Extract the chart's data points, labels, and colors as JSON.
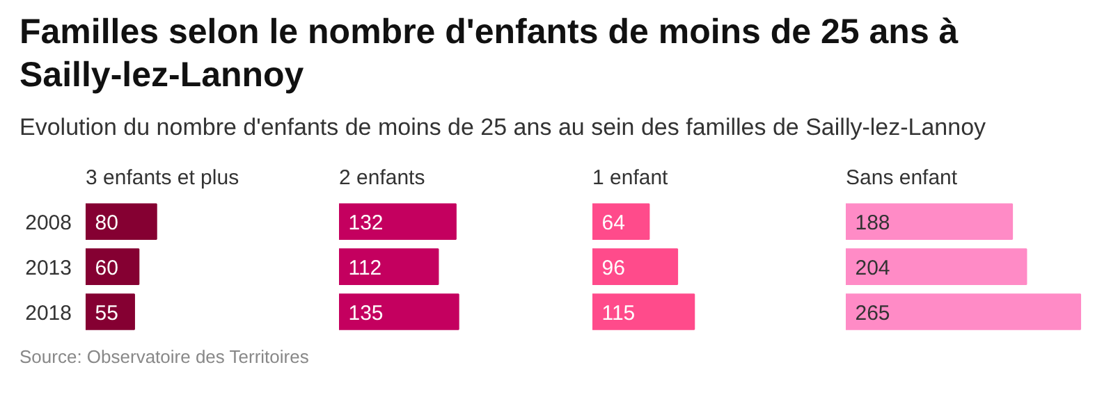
{
  "chart_data": [
    {
      "type": "other",
      "title": "Familles selon le nombre d'enfants de moins de 25 ans à Sailly-lez-Lannoy",
      "subtitle": "Evolution du nombre d'enfants de moins de 25 ans au sein des familles de Sailly-lez-Lannoy",
      "annotations": [
        "Source: Observatoire des Territoires"
      ]
    },
    {
      "type": "bar",
      "orientation": "horizontal",
      "title": "3 enfants et plus",
      "categories": [
        "2008",
        "2013",
        "2018"
      ],
      "values": [
        80,
        60,
        55
      ],
      "color": "#850032",
      "data_labels": true,
      "tick_labels": "y"
    },
    {
      "type": "bar",
      "orientation": "horizontal",
      "title": "2 enfants",
      "categories": [
        "2008",
        "2013",
        "2018"
      ],
      "values": [
        132,
        112,
        135
      ],
      "color": "#c4005f",
      "data_labels": true,
      "tick_labels": false
    },
    {
      "type": "bar",
      "orientation": "horizontal",
      "title": "1 enfant",
      "categories": [
        "2008",
        "2013",
        "2018"
      ],
      "values": [
        64,
        96,
        115
      ],
      "color": "#ff4b8b",
      "data_labels": true,
      "tick_labels": false
    },
    {
      "type": "bar",
      "orientation": "horizontal",
      "title": "Sans enfant",
      "categories": [
        "2008",
        "2013",
        "2018"
      ],
      "values": [
        188,
        204,
        265
      ],
      "color": "#ff8bc6",
      "data_labels": true,
      "tick_labels": false
    }
  ]
}
